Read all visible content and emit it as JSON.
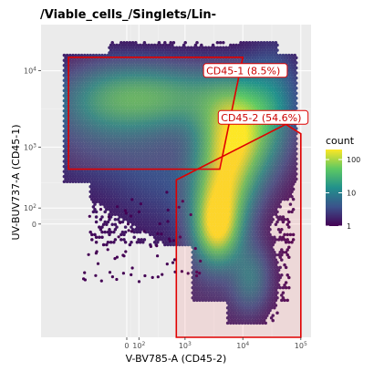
{
  "chart_data": {
    "type": "hexbin-density",
    "title": "/Viable_cells_/Singlets/Lin-",
    "xlabel": "V-BV785-A (CD45-2)",
    "ylabel": "UV-BUV737-A (CD45-1)",
    "scale": "biexponential",
    "x_ticks": [
      {
        "label": "0",
        "sup": ""
      },
      {
        "label": "10",
        "sup": "2"
      },
      {
        "label": "10",
        "sup": "3"
      },
      {
        "label": "10",
        "sup": "4"
      },
      {
        "label": "10",
        "sup": "5"
      }
    ],
    "y_ticks": [
      {
        "label": "0",
        "sup": ""
      },
      {
        "label": "10",
        "sup": "2"
      },
      {
        "label": "10",
        "sup": "3"
      },
      {
        "label": "10",
        "sup": "4"
      }
    ],
    "legend": {
      "title": "count",
      "ticks": [
        "100",
        "10",
        "1"
      ],
      "colormap": "viridis",
      "range": [
        1,
        200
      ]
    },
    "gates": [
      {
        "name": "CD45-1",
        "label": "CD45-1 (8.5%)",
        "percent": 8.5,
        "polygon": [
          [
            -1000,
            15000
          ],
          [
            10000,
            15000
          ],
          [
            4000,
            500
          ],
          [
            300,
            500
          ],
          [
            -1000,
            500
          ]
        ]
      },
      {
        "name": "CD45-2",
        "label": "CD45-2 (54.6%)",
        "percent": 54.6,
        "polygon": [
          [
            700,
            350
          ],
          [
            55000,
            2000
          ],
          [
            100000,
            1500
          ],
          [
            100000,
            -3000
          ],
          [
            700,
            -3000
          ]
        ]
      }
    ],
    "grid": true,
    "legend_position": "right"
  }
}
